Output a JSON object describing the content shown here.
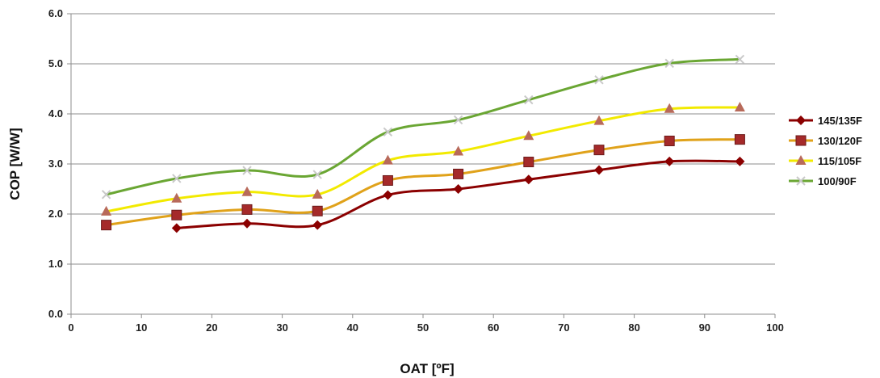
{
  "chart_data": {
    "type": "line",
    "title": "",
    "xlabel": "OAT [ºF]",
    "ylabel": "COP [W/W]",
    "xlim": [
      0,
      100
    ],
    "ylim": [
      0,
      6
    ],
    "xticks": [
      0,
      10,
      20,
      30,
      40,
      50,
      60,
      70,
      80,
      90,
      100
    ],
    "yticks": [
      "0.0",
      "1.0",
      "2.0",
      "3.0",
      "4.0",
      "5.0",
      "6.0"
    ],
    "grid": "horizontal",
    "legend_position": "right",
    "smooth": true,
    "series": [
      {
        "name": "145/135F",
        "color": "#8b0000",
        "marker": "diamond",
        "x": [
          15,
          25,
          35,
          45,
          55,
          65,
          75,
          85,
          95
        ],
        "y": [
          1.72,
          1.81,
          1.78,
          2.38,
          2.5,
          2.69,
          2.88,
          3.05,
          3.05
        ]
      },
      {
        "name": "130/120F",
        "color": "#e0a21a",
        "marker_color": "#a52a2a",
        "marker": "square",
        "x": [
          5,
          15,
          25,
          35,
          45,
          55,
          65,
          75,
          85,
          95
        ],
        "y": [
          1.78,
          1.98,
          2.09,
          2.06,
          2.67,
          2.8,
          3.04,
          3.28,
          3.46,
          3.49
        ]
      },
      {
        "name": "115/105F",
        "color": "#f2ea00",
        "marker_color": "#b86a5a",
        "marker": "triangle",
        "x": [
          5,
          15,
          25,
          35,
          45,
          55,
          65,
          75,
          85,
          95
        ],
        "y": [
          2.05,
          2.31,
          2.44,
          2.39,
          3.07,
          3.25,
          3.56,
          3.86,
          4.1,
          4.13
        ]
      },
      {
        "name": "100/90F",
        "color": "#6aa633",
        "marker_color": "#c9c9c9",
        "marker": "x",
        "x": [
          5,
          15,
          25,
          35,
          45,
          55,
          65,
          75,
          85,
          95
        ],
        "y": [
          2.39,
          2.71,
          2.87,
          2.79,
          3.64,
          3.88,
          4.28,
          4.68,
          5.01,
          5.09
        ]
      }
    ]
  }
}
